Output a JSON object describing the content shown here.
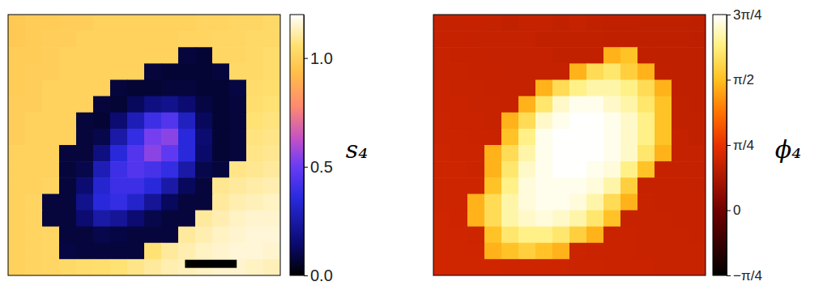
{
  "chart_data": [
    {
      "type": "heatmap",
      "colorbar_label": "s₄",
      "tick_labels": false,
      "clim": [
        0,
        1.2
      ],
      "cticks": [
        {
          "value": 0,
          "label": "0.0"
        },
        {
          "value": 0.5,
          "label": "0.5"
        },
        {
          "value": 1.0,
          "label": "1.0"
        }
      ],
      "values": [
        [
          0.97,
          0.98,
          0.98,
          0.99,
          0.99,
          1.0,
          1.0,
          1.0,
          1.0,
          1.0,
          1.0,
          1.01,
          1.01,
          1.02,
          1.02,
          1.03
        ],
        [
          0.97,
          0.98,
          0.99,
          0.99,
          1.0,
          1.0,
          1.0,
          1.0,
          1.0,
          1.0,
          1.01,
          1.01,
          1.02,
          1.02,
          1.03,
          1.03
        ],
        [
          0.98,
          0.98,
          0.99,
          1.0,
          1.0,
          1.0,
          1.0,
          1.0,
          1.0,
          1.0,
          0.08,
          0.07,
          1.02,
          1.02,
          1.03,
          1.04
        ],
        [
          0.98,
          0.99,
          0.99,
          1.0,
          1.0,
          1.0,
          1.0,
          1.0,
          0.08,
          0.07,
          0.07,
          0.07,
          0.08,
          1.03,
          1.03,
          1.04
        ],
        [
          0.98,
          0.99,
          1.0,
          1.0,
          1.0,
          1.0,
          0.08,
          0.07,
          0.07,
          0.08,
          0.08,
          0.07,
          0.07,
          0.09,
          1.04,
          1.05
        ],
        [
          0.99,
          0.99,
          1.0,
          1.0,
          1.0,
          0.08,
          0.07,
          0.12,
          0.18,
          0.2,
          0.15,
          0.09,
          0.07,
          0.08,
          1.05,
          1.06
        ],
        [
          0.99,
          1.0,
          1.0,
          1.0,
          0.08,
          0.07,
          0.15,
          0.28,
          0.4,
          0.45,
          0.3,
          0.12,
          0.07,
          0.08,
          1.06,
          1.07
        ],
        [
          0.99,
          1.0,
          1.0,
          1.0,
          0.08,
          0.1,
          0.25,
          0.38,
          0.52,
          0.55,
          0.35,
          0.15,
          0.07,
          0.08,
          1.07,
          1.08
        ],
        [
          1.0,
          1.0,
          1.0,
          0.08,
          0.08,
          0.18,
          0.35,
          0.45,
          0.55,
          0.48,
          0.35,
          0.14,
          0.07,
          0.08,
          1.08,
          1.09
        ],
        [
          1.0,
          1.0,
          1.0,
          0.08,
          0.1,
          0.28,
          0.4,
          0.45,
          0.42,
          0.38,
          0.25,
          0.1,
          0.08,
          1.08,
          1.09,
          1.1
        ],
        [
          1.0,
          1.0,
          1.01,
          0.08,
          0.15,
          0.33,
          0.4,
          0.4,
          0.35,
          0.25,
          0.12,
          0.08,
          1.09,
          1.1,
          1.11,
          1.12
        ],
        [
          1.0,
          1.01,
          0.08,
          0.08,
          0.2,
          0.35,
          0.38,
          0.32,
          0.22,
          0.12,
          0.08,
          0.08,
          1.1,
          1.12,
          1.13,
          1.14
        ],
        [
          1.0,
          1.01,
          0.08,
          0.08,
          0.15,
          0.25,
          0.22,
          0.15,
          0.1,
          0.08,
          0.08,
          1.1,
          1.12,
          1.14,
          1.15,
          1.15
        ],
        [
          1.0,
          1.01,
          1.02,
          0.08,
          0.08,
          0.1,
          0.09,
          0.08,
          0.08,
          0.08,
          1.1,
          1.12,
          1.14,
          1.15,
          1.16,
          1.16
        ],
        [
          1.0,
          1.01,
          1.02,
          0.09,
          0.08,
          0.08,
          0.08,
          0.08,
          1.06,
          1.1,
          1.12,
          1.14,
          1.15,
          1.16,
          1.16,
          1.15
        ],
        [
          1.0,
          1.01,
          1.02,
          1.03,
          1.04,
          1.05,
          1.06,
          1.08,
          1.1,
          1.12,
          1.13,
          1.14,
          1.15,
          1.15,
          1.14,
          1.13
        ]
      ]
    },
    {
      "type": "heatmap",
      "colorbar_label": "ϕ₄",
      "tick_labels": false,
      "clim": [
        -0.785,
        2.356
      ],
      "cticks": [
        {
          "value": -0.785,
          "label": "−π/4"
        },
        {
          "value": 0,
          "label": "0"
        },
        {
          "value": 0.785,
          "label": "π/4"
        },
        {
          "value": 1.571,
          "label": "π/2"
        },
        {
          "value": 2.356,
          "label": "3π/4"
        }
      ],
      "values": [
        [
          0.55,
          0.55,
          0.56,
          0.55,
          0.54,
          0.55,
          0.55,
          0.54,
          0.55,
          0.54,
          0.53,
          0.53,
          0.52,
          0.52,
          0.52,
          0.51
        ],
        [
          0.56,
          0.56,
          0.55,
          0.55,
          0.55,
          0.55,
          0.54,
          0.54,
          0.54,
          0.54,
          0.53,
          0.53,
          0.52,
          0.52,
          0.52,
          0.51
        ],
        [
          0.57,
          0.56,
          0.56,
          0.55,
          0.55,
          0.55,
          0.55,
          0.54,
          0.54,
          0.54,
          1.5,
          1.6,
          0.53,
          0.52,
          0.52,
          0.52
        ],
        [
          0.57,
          0.57,
          0.56,
          0.56,
          0.55,
          0.55,
          0.55,
          0.55,
          1.5,
          1.8,
          1.9,
          1.7,
          1.5,
          0.53,
          0.52,
          0.52
        ],
        [
          0.58,
          0.57,
          0.57,
          0.56,
          0.56,
          0.55,
          1.5,
          1.8,
          2.0,
          2.1,
          2.1,
          2.0,
          1.8,
          1.5,
          0.53,
          0.53
        ],
        [
          0.58,
          0.58,
          0.57,
          0.57,
          0.56,
          1.5,
          1.9,
          2.2,
          2.3,
          2.3,
          2.2,
          2.1,
          1.9,
          1.6,
          0.54,
          0.53
        ],
        [
          0.59,
          0.58,
          0.58,
          0.57,
          1.5,
          1.8,
          2.2,
          2.3,
          2.35,
          2.35,
          2.3,
          2.2,
          2.0,
          1.6,
          0.54,
          0.54
        ],
        [
          0.59,
          0.59,
          0.58,
          0.58,
          1.6,
          2.0,
          2.3,
          2.35,
          2.35,
          2.35,
          2.3,
          2.2,
          2.0,
          1.6,
          0.55,
          0.54
        ],
        [
          0.6,
          0.59,
          0.59,
          1.5,
          1.8,
          2.1,
          2.3,
          2.35,
          2.35,
          2.35,
          2.3,
          2.2,
          1.9,
          1.5,
          0.55,
          0.55
        ],
        [
          0.6,
          0.6,
          0.59,
          1.5,
          1.9,
          2.2,
          2.3,
          2.35,
          2.35,
          2.3,
          2.25,
          2.0,
          1.6,
          0.56,
          0.55,
          0.55
        ],
        [
          0.61,
          0.6,
          0.6,
          1.6,
          2.0,
          2.25,
          2.3,
          2.3,
          2.3,
          2.25,
          2.1,
          1.7,
          0.56,
          0.56,
          0.56,
          0.55
        ],
        [
          0.61,
          0.61,
          1.5,
          1.8,
          2.1,
          2.25,
          2.3,
          2.3,
          2.25,
          2.1,
          1.8,
          1.5,
          0.57,
          0.56,
          0.56,
          0.56
        ],
        [
          0.62,
          0.61,
          1.5,
          1.8,
          2.1,
          2.2,
          2.25,
          2.2,
          2.1,
          1.9,
          1.6,
          0.57,
          0.57,
          0.57,
          0.56,
          0.56
        ],
        [
          0.62,
          0.62,
          0.61,
          1.6,
          1.9,
          2.0,
          2.0,
          1.9,
          1.7,
          1.5,
          0.58,
          0.58,
          0.57,
          0.57,
          0.57,
          0.56
        ],
        [
          0.63,
          0.62,
          0.62,
          1.5,
          1.6,
          1.7,
          1.6,
          1.5,
          0.59,
          0.58,
          0.58,
          0.58,
          0.57,
          0.57,
          0.57,
          0.57
        ],
        [
          0.63,
          0.63,
          0.62,
          0.62,
          0.61,
          0.61,
          0.6,
          0.6,
          0.59,
          0.59,
          0.58,
          0.58,
          0.58,
          0.57,
          0.57,
          0.57
        ]
      ]
    }
  ]
}
